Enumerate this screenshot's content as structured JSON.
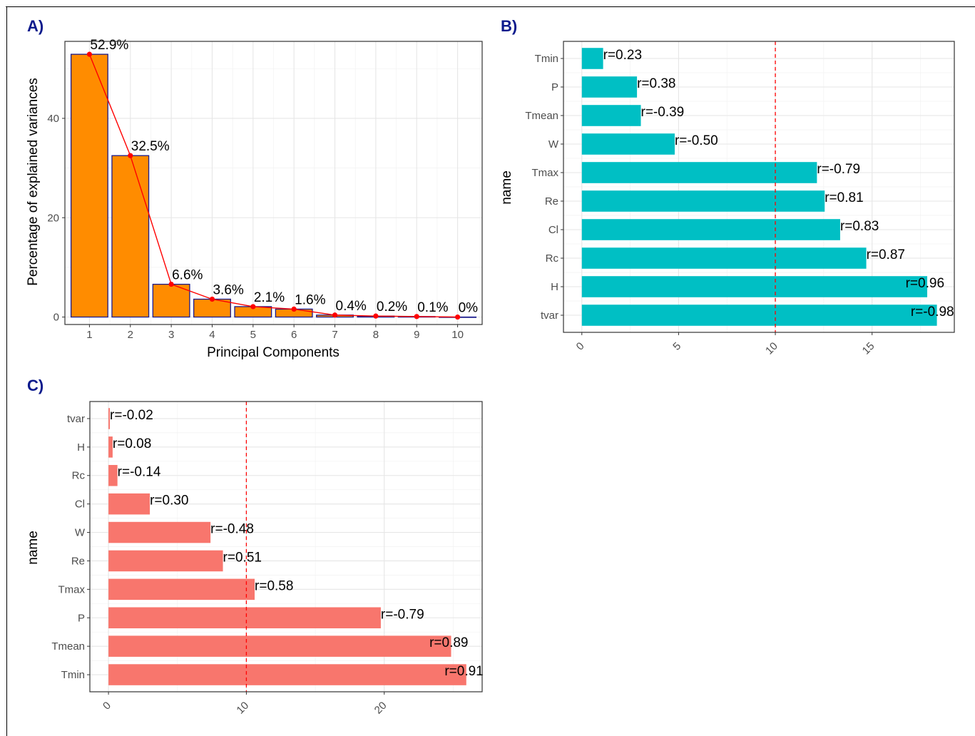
{
  "panels": {
    "a": {
      "letter": "A)"
    },
    "b": {
      "letter": "B)"
    },
    "c": {
      "letter": "C)"
    }
  },
  "colors": {
    "scree_bar": "#ff8c00",
    "scree_bar_border": "#1a1a8c",
    "scree_line": "#ff0000",
    "panel_b_bar": "#00bfc4",
    "panel_c_bar": "#f8766d",
    "reference_line": "#ff0000",
    "panel_letter": "#0b1a8c"
  },
  "chart_data": [
    {
      "panel": "A)",
      "type": "bar",
      "overlay": "line",
      "categories": [
        "1",
        "2",
        "3",
        "4",
        "5",
        "6",
        "7",
        "8",
        "9",
        "10"
      ],
      "values": [
        52.9,
        32.5,
        6.6,
        3.6,
        2.1,
        1.6,
        0.4,
        0.2,
        0.1,
        0
      ],
      "labels": [
        "52.9%",
        "32.5%",
        "6.6%",
        "3.6%",
        "2.1%",
        "1.6%",
        "0.4%",
        "0.2%",
        "0.1%",
        "0%"
      ],
      "xlabel": "Principal Components",
      "ylabel": "Percentage of explained variances",
      "ylim": [
        -1.5,
        55.5
      ],
      "yticks": [
        0,
        20,
        40
      ],
      "grid": true
    },
    {
      "panel": "B)",
      "type": "bar",
      "orientation": "horizontal",
      "categories": [
        "Tmin",
        "P",
        "Tmean",
        "W",
        "Tmax",
        "Re",
        "Cl",
        "Rc",
        "H",
        "tvar"
      ],
      "values": [
        1.1,
        2.85,
        3.05,
        4.8,
        12.15,
        12.55,
        13.35,
        14.7,
        17.85,
        18.35
      ],
      "labels": [
        "r=0.23",
        "r=0.38",
        "r=-0.39",
        "r=-0.50",
        "r=-0.79",
        "r=0.81",
        "r=0.83",
        "r=0.87",
        "r=0.96",
        "r=-0.98"
      ],
      "ylabel": "name",
      "xlabel": "",
      "xlim": [
        -0.95,
        19.25
      ],
      "xticks": [
        0,
        5,
        10,
        15
      ],
      "reference_line": 10,
      "grid": true
    },
    {
      "panel": "C)",
      "type": "bar",
      "orientation": "horizontal",
      "categories": [
        "tvar",
        "H",
        "Rc",
        "Cl",
        "W",
        "Re",
        "Tmax",
        "P",
        "Tmean",
        "Tmin"
      ],
      "values": [
        0.1,
        0.3,
        0.65,
        3.0,
        7.4,
        8.3,
        10.6,
        19.75,
        24.85,
        25.95
      ],
      "labels": [
        "r=-0.02",
        "r=0.08",
        "r=-0.14",
        "r=0.30",
        "r=-0.48",
        "r=0.51",
        "r=0.58",
        "r=-0.79",
        "r=0.89",
        "r=0.91"
      ],
      "ylabel": "name",
      "xlabel": "",
      "xlim": [
        -1.35,
        27.1
      ],
      "xticks": [
        0,
        10,
        20
      ],
      "reference_line": 10,
      "grid": true
    }
  ]
}
